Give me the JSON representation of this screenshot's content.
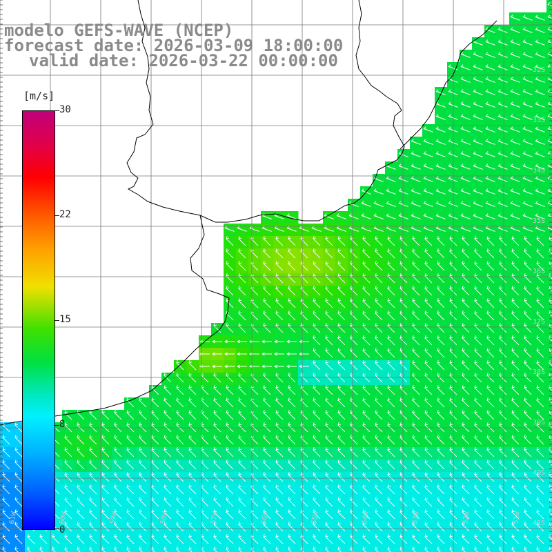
{
  "title": {
    "model": "modelo GEFS-WAVE (NCEP)",
    "forecast": "forecast date: 2026-03-09 18:00:00",
    "valid": "valid date: 2026-03-22 00:00:00"
  },
  "colorbar": {
    "unit": "[m/s]",
    "ticks": [
      "30",
      "22",
      "15",
      "8",
      "0"
    ],
    "colors": [
      "#0000ff",
      "#00f0ff",
      "#00e040",
      "#f0e000",
      "#ff0000",
      "#c0007a"
    ]
  },
  "map": {
    "lat_labels": [
      "32S",
      "33S",
      "34S",
      "35S",
      "36S",
      "37S",
      "38S",
      "39S",
      "40S",
      "41S"
    ],
    "lon_labels": [
      "61W",
      "60W",
      "59W",
      "58W",
      "57W",
      "56W",
      "55W",
      "54W",
      "53W",
      "52W",
      "51W"
    ]
  }
}
